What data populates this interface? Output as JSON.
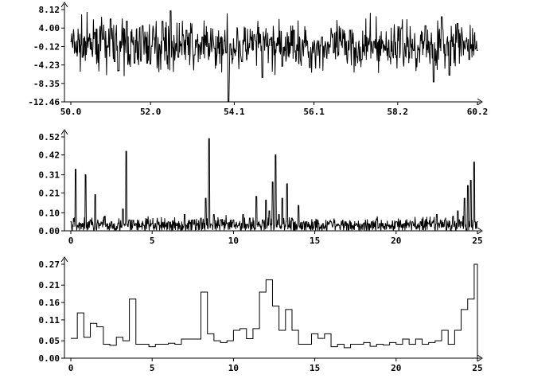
{
  "figure": {
    "background": "#ffffff",
    "ink": "#000000"
  },
  "chart_data": [
    {
      "type": "line",
      "title": "",
      "xlabel": "",
      "ylabel": "",
      "xlim": [
        50.0,
        60.2
      ],
      "ylim": [
        -12.46,
        8.12
      ],
      "x_ticks": [
        50.0,
        52.0,
        54.1,
        56.1,
        58.2,
        60.2
      ],
      "x_tick_labels": [
        "50.0",
        "52.0",
        "54.1",
        "56.1",
        "58.2",
        "60.2"
      ],
      "y_ticks": [
        8.12,
        4.0,
        -0.12,
        -4.23,
        -8.35,
        -12.46
      ],
      "y_tick_labels": [
        "8.12",
        "4.00",
        "-0.12",
        "-4.23",
        "-8.35",
        "-12.46"
      ],
      "grid": false,
      "series": [
        {
          "x": [
            50.0,
            50.3,
            50.6,
            50.8,
            51.0,
            51.1,
            51.2,
            51.4,
            51.6,
            51.8,
            52.0,
            52.3,
            52.5,
            52.7,
            52.9,
            53.1,
            53.3,
            53.6,
            53.9,
            53.95,
            54.0,
            54.3,
            54.6,
            54.8,
            55.0,
            55.3,
            55.6,
            56.0,
            56.3,
            56.6,
            57.0,
            57.3,
            57.6,
            58.0,
            58.3,
            58.6,
            58.9,
            59.1,
            59.3,
            59.5,
            59.7,
            60.0,
            60.2
          ],
          "values": [
            1.0,
            -2.5,
            3.0,
            1.5,
            6.0,
            -3.5,
            -5.5,
            5.5,
            -3.8,
            4.5,
            -4.0,
            5.5,
            7.8,
            -2.5,
            3.5,
            -2.0,
            2.0,
            -0.5,
            -1.5,
            -12.3,
            0.5,
            -3.5,
            2.5,
            -7.0,
            1.5,
            -4.5,
            3.5,
            -4.8,
            2.0,
            -1.5,
            3.5,
            -3.0,
            1.0,
            -2.5,
            4.0,
            -1.0,
            4.5,
            -8.0,
            6.5,
            -6.5,
            5.0,
            -3.0,
            -1.0
          ]
        }
      ]
    },
    {
      "type": "line",
      "title": "",
      "xlabel": "",
      "ylabel": "",
      "xlim": [
        0,
        25
      ],
      "ylim": [
        0.0,
        0.52
      ],
      "x_ticks": [
        0,
        5,
        10,
        15,
        20,
        25
      ],
      "x_tick_labels": [
        "0",
        "5",
        "10",
        "15",
        "20",
        "25"
      ],
      "y_ticks": [
        0.52,
        0.42,
        0.31,
        0.21,
        0.1,
        0.0
      ],
      "y_tick_labels": [
        "0.52",
        "0.42",
        "0.31",
        "0.21",
        "0.10",
        "0.00"
      ],
      "grid": false,
      "series": [
        {
          "x": [
            0.0,
            0.3,
            0.6,
            0.9,
            1.2,
            1.5,
            1.8,
            2.1,
            2.5,
            2.9,
            3.2,
            3.4,
            3.6,
            4.0,
            4.5,
            5.0,
            5.5,
            6.0,
            6.5,
            7.0,
            7.5,
            7.8,
            8.0,
            8.3,
            8.5,
            8.8,
            9.2,
            9.6,
            10.0,
            10.3,
            10.6,
            11.0,
            11.4,
            11.8,
            12.0,
            12.2,
            12.4,
            12.6,
            12.8,
            13.0,
            13.3,
            13.6,
            14.0,
            14.5,
            15.0,
            15.5,
            16.0,
            16.5,
            17.0,
            17.5,
            18.0,
            18.5,
            19.0,
            19.5,
            20.0,
            20.5,
            21.0,
            21.5,
            22.0,
            22.5,
            23.0,
            23.5,
            23.8,
            24.0,
            24.2,
            24.4,
            24.6,
            24.8,
            25.0
          ],
          "values": [
            0.05,
            0.34,
            0.04,
            0.31,
            0.06,
            0.2,
            0.03,
            0.08,
            0.05,
            0.04,
            0.12,
            0.44,
            0.06,
            0.04,
            0.03,
            0.04,
            0.03,
            0.05,
            0.03,
            0.09,
            0.06,
            0.04,
            0.07,
            0.18,
            0.51,
            0.09,
            0.06,
            0.04,
            0.06,
            0.03,
            0.09,
            0.07,
            0.19,
            0.06,
            0.17,
            0.11,
            0.27,
            0.42,
            0.09,
            0.18,
            0.26,
            0.07,
            0.14,
            0.05,
            0.05,
            0.04,
            0.05,
            0.03,
            0.04,
            0.03,
            0.04,
            0.05,
            0.04,
            0.03,
            0.05,
            0.04,
            0.05,
            0.05,
            0.04,
            0.09,
            0.06,
            0.08,
            0.11,
            0.05,
            0.18,
            0.25,
            0.28,
            0.38,
            0.05
          ]
        }
      ]
    },
    {
      "type": "line",
      "title": "",
      "xlabel": "",
      "ylabel": "",
      "xlim": [
        0,
        25
      ],
      "ylim": [
        0.0,
        0.27
      ],
      "x_ticks": [
        0,
        5,
        10,
        15,
        20,
        25
      ],
      "x_tick_labels": [
        "0",
        "5",
        "10",
        "15",
        "20",
        "25"
      ],
      "y_ticks": [
        0.27,
        0.21,
        0.16,
        0.11,
        0.05,
        0.0
      ],
      "y_tick_labels": [
        "0.27",
        "0.21",
        "0.16",
        "0.11",
        "0.05",
        "0.00"
      ],
      "grid": false,
      "step": true,
      "series": [
        {
          "bin_width": 0.4,
          "x_start": 0,
          "values": [
            0.057,
            0.13,
            0.06,
            0.1,
            0.09,
            0.04,
            0.037,
            0.06,
            0.05,
            0.17,
            0.04,
            0.04,
            0.033,
            0.04,
            0.04,
            0.043,
            0.04,
            0.055,
            0.055,
            0.055,
            0.19,
            0.07,
            0.05,
            0.045,
            0.05,
            0.08,
            0.085,
            0.056,
            0.085,
            0.19,
            0.225,
            0.15,
            0.08,
            0.14,
            0.08,
            0.04,
            0.04,
            0.07,
            0.057,
            0.07,
            0.033,
            0.04,
            0.03,
            0.04,
            0.04,
            0.045,
            0.034,
            0.04,
            0.038,
            0.045,
            0.04,
            0.055,
            0.04,
            0.055,
            0.04,
            0.045,
            0.05,
            0.08,
            0.04,
            0.08,
            0.14,
            0.17,
            0.27
          ]
        }
      ]
    }
  ]
}
